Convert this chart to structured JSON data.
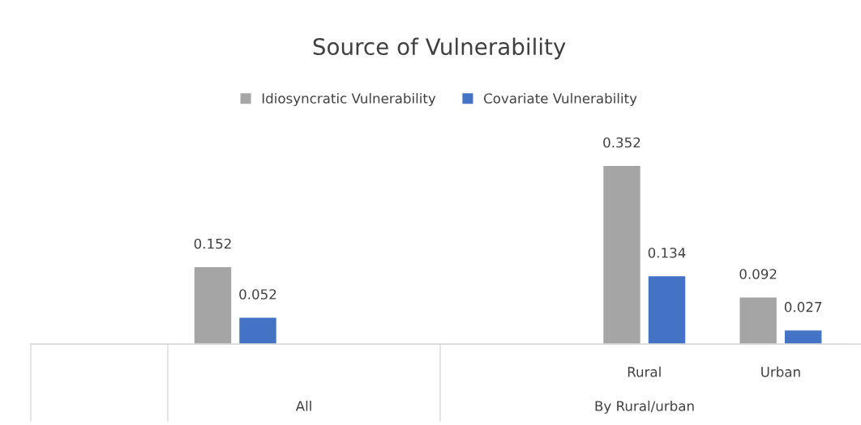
{
  "chart_data": {
    "type": "bar",
    "title": "Source of Vulnerability",
    "categories": [
      null,
      null,
      null,
      null,
      "Rural",
      "Urban"
    ],
    "series": [
      {
        "name": "Idiosyncratic Vulnerability",
        "color": "#a5a5a5",
        "values": [
          null,
          0.152,
          null,
          null,
          0.352,
          0.092
        ]
      },
      {
        "name": "Covariate Vulnerability",
        "color": "#4472c4",
        "values": [
          null,
          0.052,
          null,
          null,
          0.134,
          0.027
        ]
      }
    ],
    "data_labels": true,
    "legend": "top",
    "grid": false,
    "annotations": [
      "All",
      "By Rural/urban"
    ]
  }
}
